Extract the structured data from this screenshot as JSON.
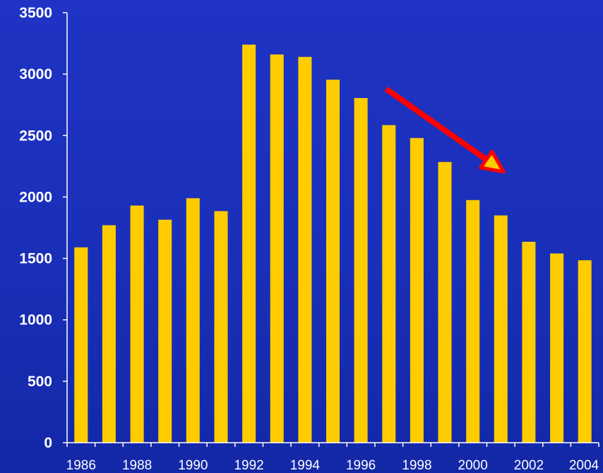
{
  "chart_data": {
    "type": "bar",
    "categories": [
      "1986",
      "1987",
      "1988",
      "1989",
      "1990",
      "1991",
      "1992",
      "1993",
      "1994",
      "1995",
      "1996",
      "1997",
      "1998",
      "1999",
      "2000",
      "2001",
      "2002",
      "2003",
      "2004"
    ],
    "values": [
      1590,
      1770,
      1930,
      1815,
      1990,
      1885,
      3240,
      3160,
      3140,
      2955,
      2805,
      2585,
      2480,
      2285,
      1975,
      1850,
      1635,
      1540,
      1485
    ],
    "x_tick_labels": [
      "1986",
      "1988",
      "1990",
      "1992",
      "1994",
      "1996",
      "1998",
      "2000",
      "2002",
      "2004"
    ],
    "y_tick_labels": [
      "0",
      "500",
      "1000",
      "1500",
      "2000",
      "2500",
      "3000",
      "3500"
    ],
    "ylim": [
      0,
      3500
    ],
    "grid": false,
    "legend": "none",
    "title": "",
    "xlabel": "",
    "ylabel": "",
    "annotation": {
      "type": "arrow",
      "from_category": "1996.9",
      "from_value": 2880,
      "to_category": "2001.1",
      "to_value": 2205,
      "color": "#ff0000",
      "head_color": "#ffcc00"
    },
    "colors": {
      "bar": "#ffcc00",
      "axis": "#ffffff",
      "text": "#ffffff",
      "background": "#1a2fb8"
    }
  }
}
